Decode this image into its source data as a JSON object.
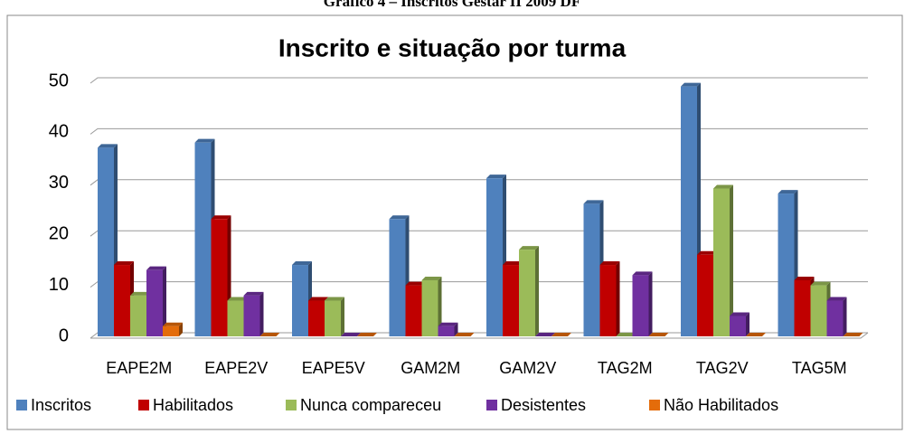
{
  "caption": "Gráfico 4 – Inscritos Gestar II 2009 DF",
  "chart_data": {
    "type": "bar",
    "title": "Inscrito e situação por turma",
    "categories": [
      "EAPE2M",
      "EAPE2V",
      "EAPE5V",
      "GAM2M",
      "GAM2V",
      "TAG2M",
      "TAG2V",
      "TAG5M"
    ],
    "series": [
      {
        "name": "Inscritos",
        "color": "#4f81bd",
        "values": [
          37,
          38,
          14,
          23,
          31,
          26,
          49,
          28
        ]
      },
      {
        "name": "Habilitados",
        "color": "#c00000",
        "values": [
          14,
          23,
          7,
          10,
          14,
          14,
          16,
          11
        ]
      },
      {
        "name": "Nunca compareceu",
        "color": "#9bbb59",
        "values": [
          8,
          7,
          7,
          11,
          17,
          0,
          29,
          10
        ]
      },
      {
        "name": "Desistentes",
        "color": "#7030a0",
        "values": [
          13,
          8,
          0,
          2,
          0,
          12,
          4,
          7
        ]
      },
      {
        "name": "Não Habilitados",
        "color": "#e46c0a",
        "values": [
          2,
          0,
          0,
          0,
          0,
          0,
          0,
          0
        ]
      }
    ],
    "ylim": [
      0,
      50
    ],
    "yticks": [
      0,
      10,
      20,
      30,
      40,
      50
    ],
    "grid": true,
    "legend": "bottom"
  }
}
